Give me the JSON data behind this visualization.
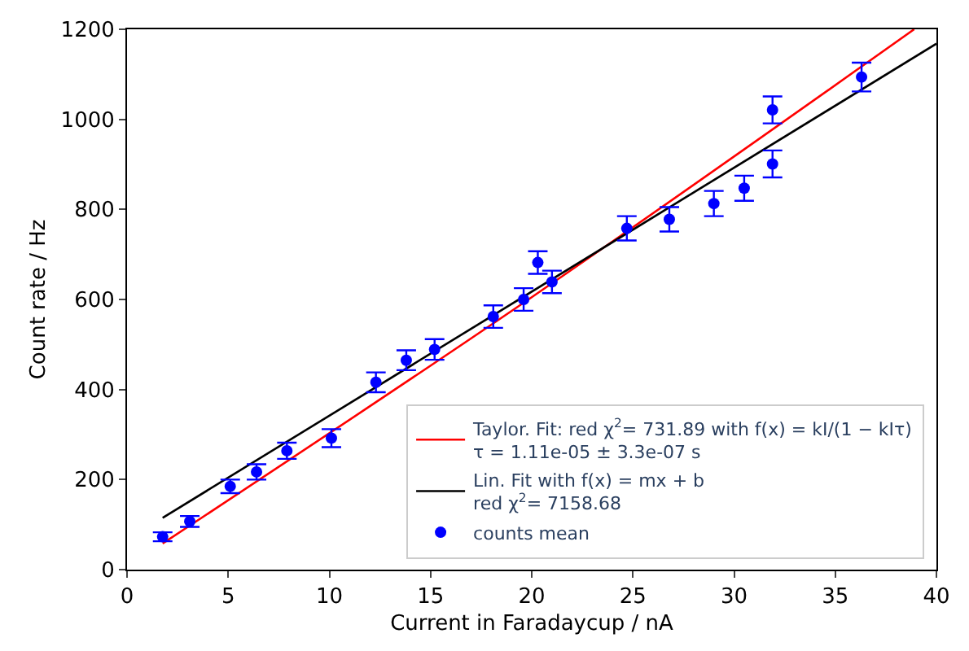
{
  "chart_data": {
    "type": "scatter",
    "xlabel": "Current in Faradaycup / nA",
    "ylabel": "Count rate / Hz",
    "xlim": [
      0,
      40
    ],
    "xticks": [
      0,
      5,
      10,
      15,
      20,
      25,
      30,
      35,
      40
    ],
    "ylim": [
      0,
      1200
    ],
    "yticks": [
      0,
      200,
      400,
      600,
      800,
      1000,
      1200
    ],
    "legend": "bottom right",
    "marker": "circle",
    "series": [
      {
        "type": "line",
        "name": "Taylor. Fit: red χ$^{2}$= 731.89 with f(x) = kI/(1 − kIτ)\nτ = 1.11e-05 ± 3.3e-07 s",
        "color": "#ff0000",
        "marker": "none",
        "x": [
          1.76,
          20,
          38.9
        ],
        "values": [
          58,
          605,
          1200
        ]
      },
      {
        "type": "line",
        "name": "Lin. Fit with f(x) = mx + b\nred χ$^{2}$= 7158.68",
        "color": "#000000",
        "marker": "none",
        "x": [
          1.76,
          40
        ],
        "values": [
          115,
          1168
        ]
      },
      {
        "name": "counts mean",
        "color": "#0000ff",
        "x": [
          1.76,
          3.1,
          5.1,
          6.4,
          7.9,
          10.1,
          12.3,
          13.8,
          15.2,
          18.1,
          19.6,
          20.3,
          21.0,
          24.7,
          26.8,
          29.0,
          30.5,
          31.9,
          31.9,
          36.3
        ],
        "values": [
          73,
          107,
          185,
          217,
          264,
          292,
          416,
          465,
          489,
          562,
          600,
          682,
          639,
          758,
          778,
          813,
          847,
          1021,
          901,
          1094
        ],
        "errors": [
          10,
          12,
          15,
          17,
          18,
          20,
          22,
          22,
          23,
          25,
          25,
          25,
          25,
          27,
          27,
          28,
          28,
          30,
          30,
          32
        ]
      }
    ]
  }
}
